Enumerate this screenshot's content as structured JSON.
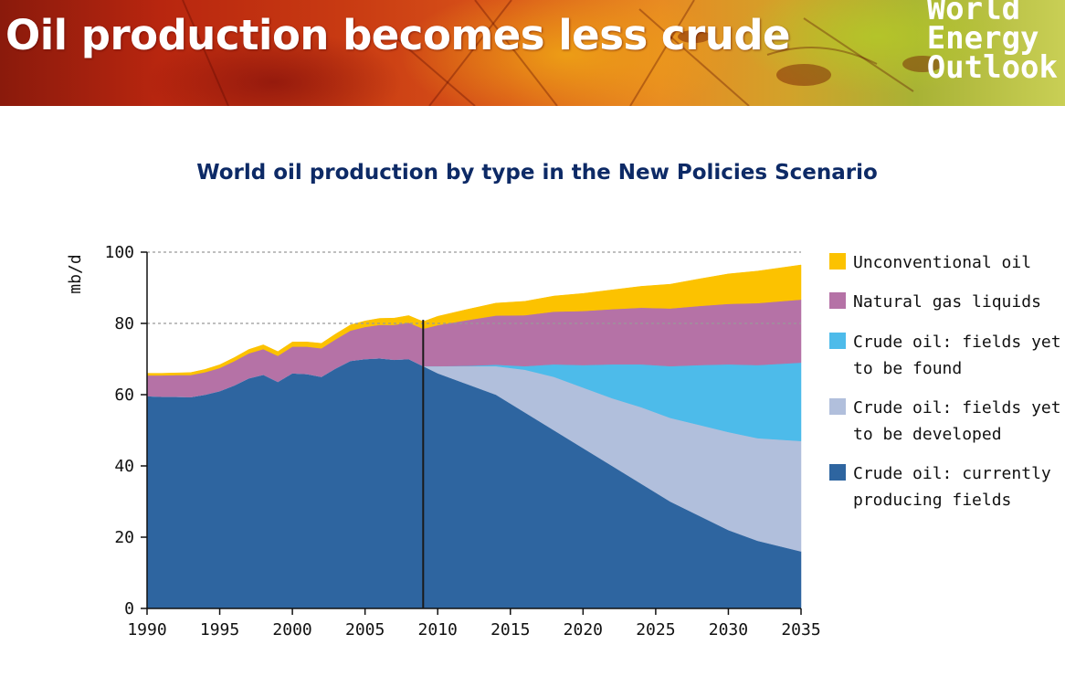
{
  "slide": {
    "headline": "Oil production becomes less crude",
    "logo_lines": [
      "World",
      "Energy",
      "Outlook"
    ]
  },
  "chart_data": {
    "type": "area",
    "title": "World oil production by type in the New Policies Scenario",
    "ylabel": "mb/d",
    "xlabel": "",
    "xlim": [
      1990,
      2035
    ],
    "ylim": [
      0,
      100
    ],
    "x_ticks": [
      1990,
      1995,
      2000,
      2005,
      2010,
      2015,
      2020,
      2025,
      2030,
      2035
    ],
    "y_ticks": [
      0,
      20,
      40,
      60,
      80,
      100
    ],
    "gridlines_y": [
      80,
      100
    ],
    "divider_year": 2009,
    "legend_position": "right",
    "x": [
      1990,
      1991,
      1992,
      1993,
      1994,
      1995,
      1996,
      1997,
      1998,
      1999,
      2000,
      2001,
      2002,
      2003,
      2004,
      2005,
      2006,
      2007,
      2008,
      2009,
      2010,
      2012,
      2014,
      2016,
      2018,
      2020,
      2022,
      2024,
      2026,
      2028,
      2030,
      2032,
      2035
    ],
    "series": [
      {
        "name": "Crude oil: currently producing fields",
        "color": "#2e65a0",
        "values": [
          59.6,
          59.4,
          59.4,
          59.3,
          60.0,
          61.0,
          62.6,
          64.6,
          65.6,
          63.6,
          66.0,
          65.8,
          65.0,
          67.4,
          69.5,
          70.0,
          70.2,
          69.8,
          70.0,
          68.0,
          66.0,
          63.0,
          60.0,
          55.0,
          50.0,
          45.0,
          40.0,
          35.0,
          30.0,
          26.0,
          22.0,
          19.0,
          16.0
        ]
      },
      {
        "name": "Crude oil: fields yet to be developed",
        "color": "#b1bfdc",
        "values": [
          0,
          0,
          0,
          0,
          0,
          0,
          0,
          0,
          0,
          0,
          0,
          0,
          0,
          0,
          0,
          0,
          0,
          0,
          0,
          0,
          2.0,
          5.0,
          8.0,
          12.0,
          15.0,
          17.0,
          19.0,
          21.5,
          23.5,
          25.5,
          27.5,
          28.8,
          31.0
        ]
      },
      {
        "name": "Crude oil: fields yet to be found",
        "color": "#4dbbea",
        "values": [
          0,
          0,
          0,
          0,
          0,
          0,
          0,
          0,
          0,
          0,
          0,
          0,
          0,
          0,
          0,
          0,
          0,
          0,
          0,
          0,
          0,
          0.1,
          0.4,
          1.0,
          3.5,
          6.3,
          9.5,
          12.0,
          14.5,
          16.8,
          19.0,
          20.5,
          22.0
        ]
      },
      {
        "name": "Natural gas liquids",
        "color": "#b572a6",
        "values": [
          5.8,
          6.0,
          6.1,
          6.2,
          6.3,
          6.5,
          6.8,
          7.0,
          7.2,
          7.3,
          7.5,
          7.7,
          8.0,
          8.2,
          8.5,
          9.0,
          9.4,
          9.8,
          10.2,
          10.5,
          11.5,
          12.8,
          13.8,
          14.3,
          14.8,
          15.2,
          15.5,
          15.9,
          16.2,
          16.6,
          17.0,
          17.4,
          17.7
        ]
      },
      {
        "name": "Unconventional oil",
        "color": "#fcc200",
        "values": [
          0.6,
          0.6,
          0.6,
          0.7,
          0.8,
          0.9,
          1.0,
          1.1,
          1.2,
          1.2,
          1.3,
          1.3,
          1.4,
          1.5,
          1.6,
          1.7,
          1.8,
          1.9,
          2.0,
          2.0,
          2.5,
          3.0,
          3.5,
          3.9,
          4.4,
          4.9,
          5.4,
          6.0,
          6.8,
          7.6,
          8.4,
          9.0,
          9.7
        ]
      }
    ],
    "legend": [
      {
        "lines": [
          "Unconventional oil"
        ],
        "color": "#fcc200"
      },
      {
        "lines": [
          "Natural gas liquids"
        ],
        "color": "#b572a6"
      },
      {
        "lines": [
          "Crude oil: fields yet",
          "to be found"
        ],
        "color": "#4dbbea"
      },
      {
        "lines": [
          "Crude oil: fields yet",
          "to be developed"
        ],
        "color": "#b1bfdc"
      },
      {
        "lines": [
          "Crude oil: currently",
          "producing fields"
        ],
        "color": "#2e65a0"
      }
    ]
  }
}
